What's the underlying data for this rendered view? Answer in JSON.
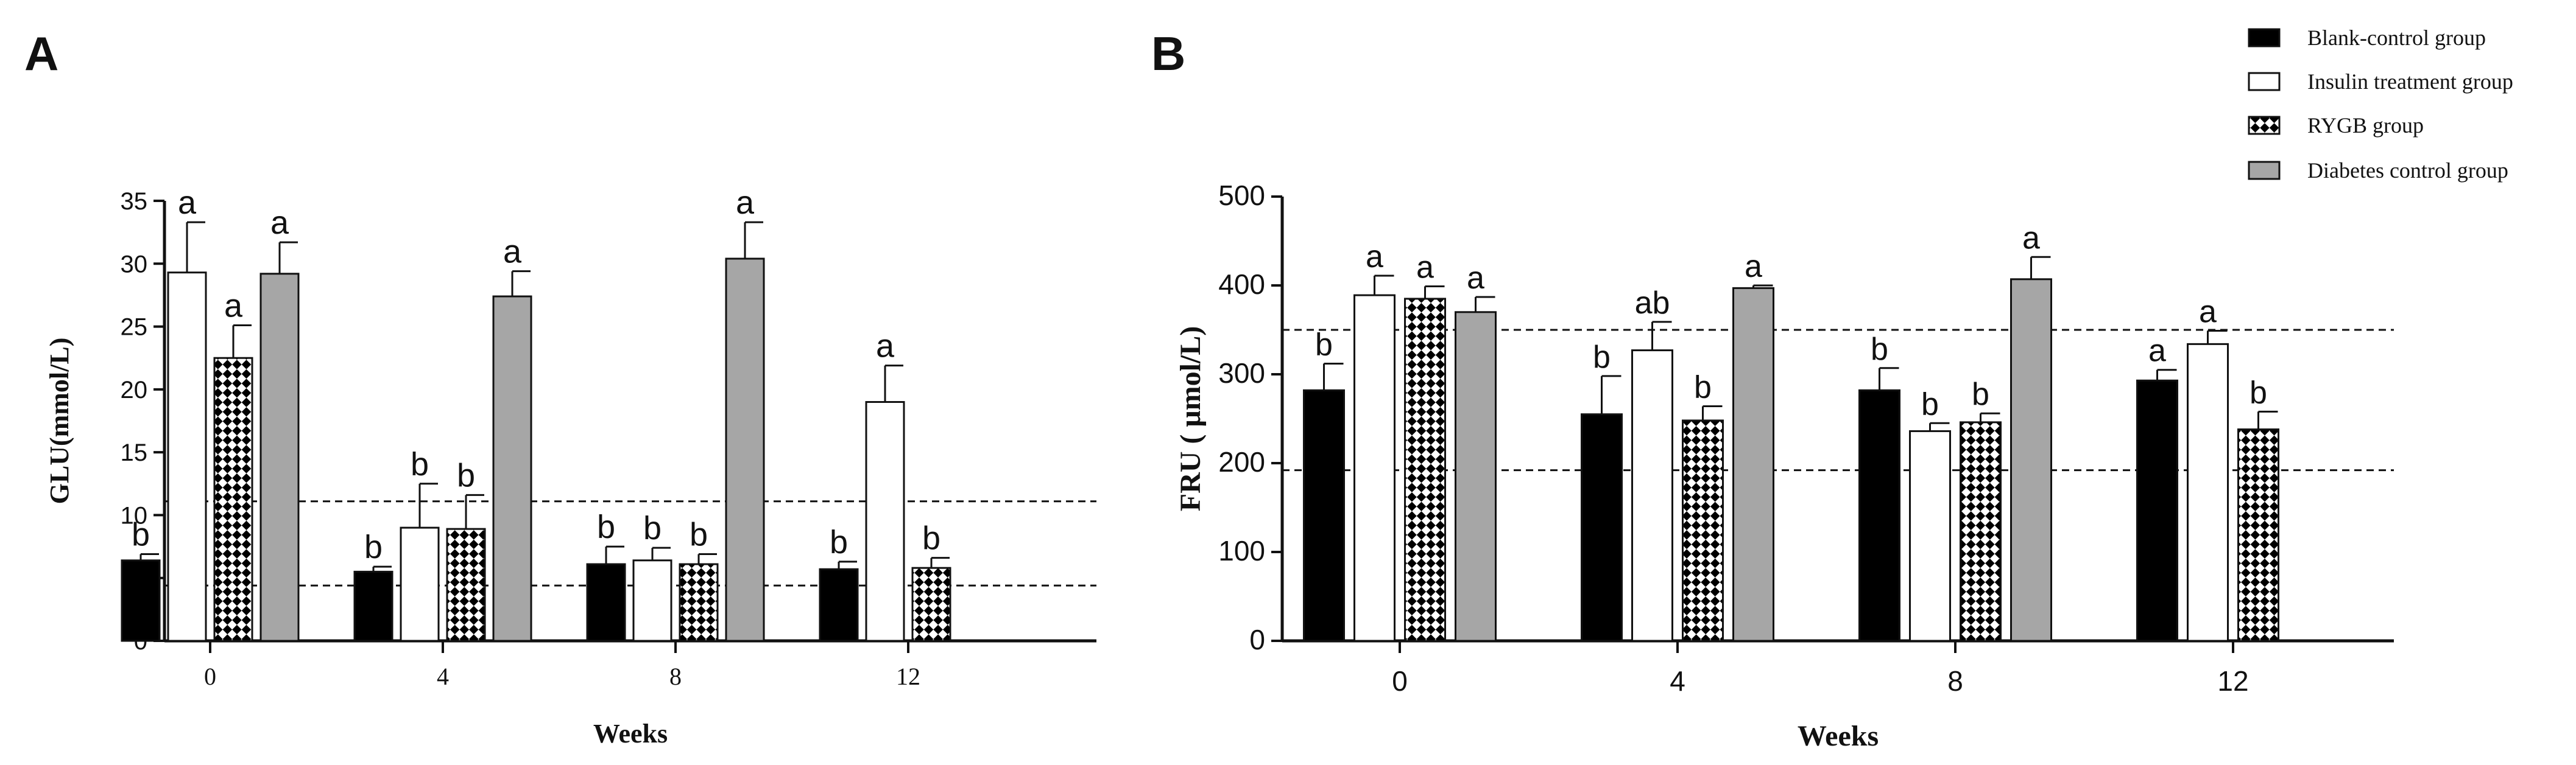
{
  "colors": {
    "blank": "#000000",
    "insulin": "#ffffff",
    "rygb": "#000000",
    "diabetes": "#a6a6a6",
    "axis": "#111111"
  },
  "legend": {
    "items": [
      {
        "name": "Blank-control group",
        "key": "blank"
      },
      {
        "name": "Insulin treatment group",
        "key": "insulin"
      },
      {
        "name": "RYGB group",
        "key": "rygb"
      },
      {
        "name": "Diabetes control group",
        "key": "diabetes"
      }
    ]
  },
  "chart_data": [
    {
      "panel": "A",
      "type": "bar",
      "xlabel": "Weeks",
      "ylabel": "GLU(mmol/L)",
      "ylim": [
        0,
        35
      ],
      "yticks": [
        0,
        5,
        10,
        15,
        20,
        25,
        30,
        35
      ],
      "categories": [
        "0",
        "4",
        "8",
        "12"
      ],
      "reference_lines": [
        4.4,
        11.1
      ],
      "series": [
        {
          "name": "Blank-control group",
          "key": "blank",
          "values": [
            6.4,
            5.5,
            6.1,
            5.7
          ],
          "errors": [
            0.5,
            0.4,
            1.4,
            0.6
          ],
          "labels": [
            "b",
            "b",
            "b",
            "b"
          ]
        },
        {
          "name": "Insulin treatment group",
          "key": "insulin",
          "values": [
            29.3,
            9.0,
            6.4,
            19.0
          ],
          "errors": [
            4.0,
            3.5,
            1.0,
            2.9
          ],
          "labels": [
            "a",
            "b",
            "b",
            "a"
          ]
        },
        {
          "name": "RYGB group",
          "key": "rygb",
          "values": [
            22.5,
            8.9,
            6.1,
            5.8
          ],
          "errors": [
            2.6,
            2.7,
            0.8,
            0.8
          ],
          "labels": [
            "a",
            "b",
            "b",
            "b"
          ]
        },
        {
          "name": "Diabetes control group",
          "key": "diabetes",
          "values": [
            29.2,
            27.4,
            30.4,
            null
          ],
          "errors": [
            2.5,
            2.0,
            2.9,
            null
          ],
          "labels": [
            "a",
            "a",
            "a",
            ""
          ]
        }
      ]
    },
    {
      "panel": "B",
      "type": "bar",
      "xlabel": "Weeks",
      "ylabel": "FRU ( μmol/L)",
      "ylim": [
        0,
        500
      ],
      "yticks": [
        0,
        100,
        200,
        300,
        400,
        500
      ],
      "categories": [
        "0",
        "4",
        "8",
        "12"
      ],
      "reference_lines": [
        192,
        350
      ],
      "series": [
        {
          "name": "Blank-control group",
          "key": "blank",
          "values": [
            282,
            255,
            282,
            293
          ],
          "errors": [
            30,
            43,
            25,
            12
          ],
          "labels": [
            "b",
            "b",
            "b",
            "a"
          ]
        },
        {
          "name": "Insulin treatment group",
          "key": "insulin",
          "values": [
            389,
            327,
            236,
            334
          ],
          "errors": [
            22,
            32,
            9,
            15
          ],
          "labels": [
            "a",
            "ab",
            "b",
            "a"
          ]
        },
        {
          "name": "RYGB group",
          "key": "rygb",
          "values": [
            385,
            248,
            246,
            238
          ],
          "errors": [
            14,
            16,
            10,
            20
          ],
          "labels": [
            "a",
            "b",
            "b",
            "b"
          ]
        },
        {
          "name": "Diabetes control group",
          "key": "diabetes",
          "values": [
            370,
            397,
            407,
            null
          ],
          "errors": [
            17,
            3,
            25,
            null
          ],
          "labels": [
            "a",
            "a",
            "a",
            ""
          ]
        }
      ]
    }
  ]
}
